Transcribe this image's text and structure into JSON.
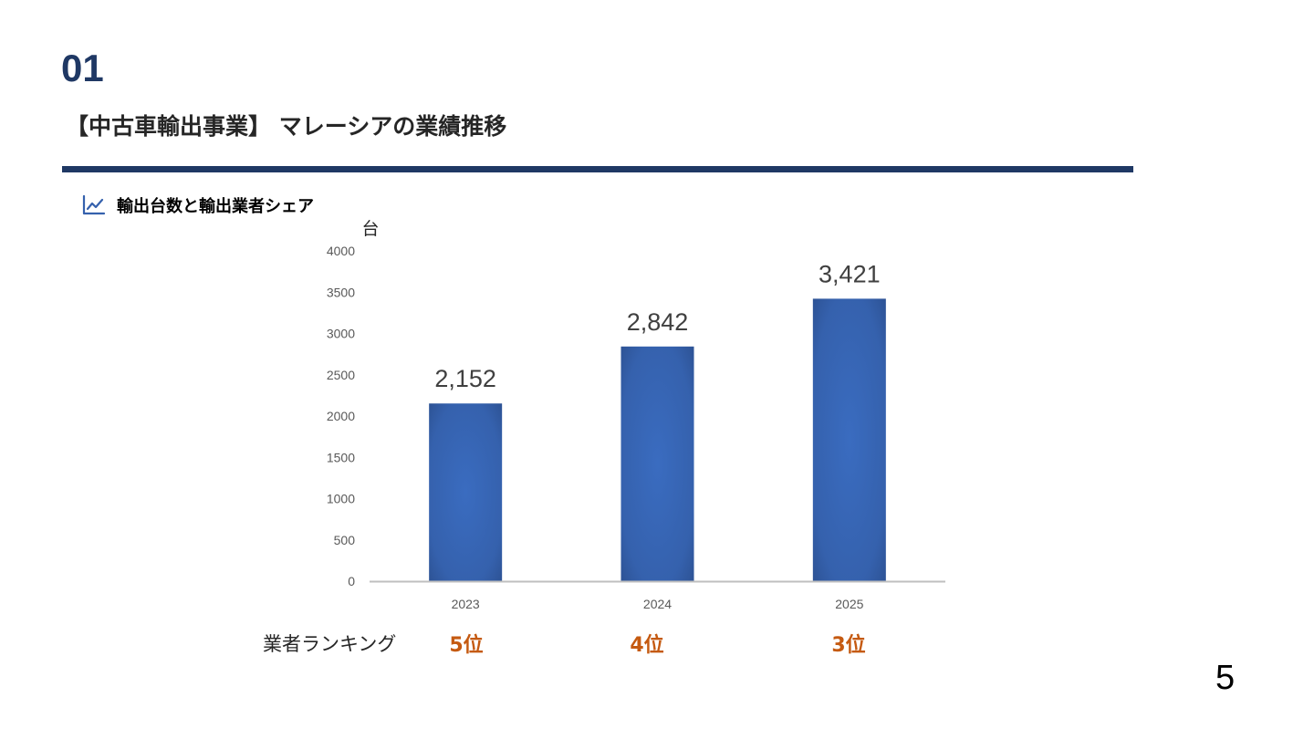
{
  "slide": {
    "section_number": "01",
    "title": "【中古車輸出事業】 マレーシアの業績推移",
    "chart_heading": "輸出台数と輸出業者シェア",
    "chart_heading_icon": "line-chart-icon",
    "page_number": "5",
    "accent_color": "#1f3864"
  },
  "chart_data": {
    "type": "bar",
    "title": "",
    "xlabel": "",
    "ylabel": "台",
    "categories": [
      "2023",
      "2024",
      "2025"
    ],
    "values": [
      2152,
      2842,
      3421
    ],
    "value_labels": [
      "2,152",
      "2,842",
      "3,421"
    ],
    "ylim": [
      0,
      4000
    ],
    "yticks": [
      "0",
      "500",
      "1000",
      "1500",
      "2000",
      "2500",
      "3000",
      "3500",
      "4000"
    ],
    "grid": false,
    "legend": "none",
    "bar_color": "#3561ad"
  },
  "ranking": {
    "label": "業者ランキング",
    "items": [
      "5位",
      "4位",
      "3位"
    ],
    "color": "#c55a11"
  }
}
